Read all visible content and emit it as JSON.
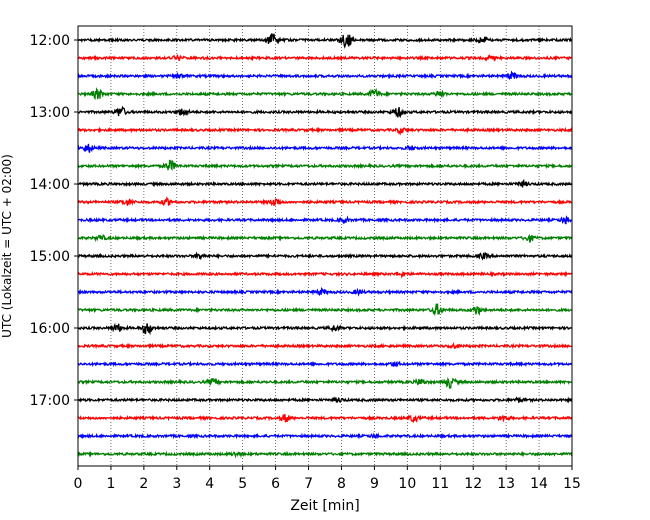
{
  "chart_data": {
    "type": "line",
    "chart_kind": "helicorder",
    "xlabel": "Zeit  [min]",
    "ylabel": "UTC (Lokalzeit = UTC + 02:00)",
    "xlim": [
      0,
      15
    ],
    "x_ticks": [
      0,
      1,
      2,
      3,
      4,
      5,
      6,
      7,
      8,
      9,
      10,
      11,
      12,
      13,
      14,
      15
    ],
    "x_tick_labels": [
      "0",
      "1",
      "2",
      "3",
      "4",
      "5",
      "6",
      "7",
      "8",
      "9",
      "10",
      "11",
      "12",
      "13",
      "14",
      "15"
    ],
    "y_tick_labels": [
      "12:00",
      "13:00",
      "14:00",
      "15:00",
      "16:00",
      "17:00"
    ],
    "grid": {
      "vertical_dotted": true,
      "horizontal": false
    },
    "trace_colors": [
      "#000000",
      "#ff0000",
      "#0000ff",
      "#007f00"
    ],
    "traces": [
      {
        "start": "12:00",
        "color": "#000000",
        "events": [
          [
            5.9,
            1.0
          ],
          [
            8.1,
            0.8
          ],
          [
            8.2,
            0.6
          ],
          [
            12.3,
            0.5
          ]
        ]
      },
      {
        "start": "12:15",
        "color": "#ff0000",
        "events": [
          [
            3.0,
            0.4
          ],
          [
            12.5,
            0.3
          ]
        ]
      },
      {
        "start": "12:30",
        "color": "#0000ff",
        "events": [
          [
            3.1,
            0.3
          ],
          [
            13.2,
            0.5
          ]
        ]
      },
      {
        "start": "12:45",
        "color": "#007f00",
        "events": [
          [
            0.6,
            0.8
          ],
          [
            9.0,
            0.7
          ],
          [
            11.0,
            0.5
          ]
        ]
      },
      {
        "start": "13:00",
        "color": "#000000",
        "events": [
          [
            1.3,
            0.8
          ],
          [
            3.2,
            0.6
          ],
          [
            9.7,
            0.8
          ]
        ]
      },
      {
        "start": "13:15",
        "color": "#ff0000",
        "events": [
          [
            9.8,
            0.4
          ]
        ]
      },
      {
        "start": "13:30",
        "color": "#0000ff",
        "events": [
          [
            0.3,
            0.7
          ],
          [
            10.1,
            0.3
          ]
        ]
      },
      {
        "start": "13:45",
        "color": "#007f00",
        "events": [
          [
            2.8,
            0.9
          ]
        ]
      },
      {
        "start": "14:00",
        "color": "#000000",
        "events": [
          [
            13.5,
            0.4
          ]
        ]
      },
      {
        "start": "14:15",
        "color": "#ff0000",
        "events": [
          [
            1.5,
            0.5
          ],
          [
            2.7,
            0.5
          ],
          [
            6.0,
            0.7
          ]
        ]
      },
      {
        "start": "14:30",
        "color": "#0000ff",
        "events": [
          [
            8.1,
            0.3
          ],
          [
            14.8,
            0.5
          ]
        ]
      },
      {
        "start": "14:45",
        "color": "#007f00",
        "events": [
          [
            0.7,
            0.4
          ],
          [
            13.7,
            0.5
          ]
        ]
      },
      {
        "start": "15:00",
        "color": "#000000",
        "events": [
          [
            3.7,
            0.4
          ],
          [
            12.3,
            0.4
          ]
        ]
      },
      {
        "start": "15:15",
        "color": "#ff0000",
        "events": [
          [
            9.8,
            0.3
          ]
        ]
      },
      {
        "start": "15:30",
        "color": "#0000ff",
        "events": [
          [
            7.4,
            0.4
          ],
          [
            8.5,
            0.3
          ]
        ]
      },
      {
        "start": "15:45",
        "color": "#007f00",
        "events": [
          [
            10.9,
            0.9
          ],
          [
            12.1,
            0.7
          ]
        ]
      },
      {
        "start": "16:00",
        "color": "#000000",
        "events": [
          [
            1.2,
            0.6
          ],
          [
            2.1,
            1.0
          ],
          [
            7.8,
            0.4
          ]
        ]
      },
      {
        "start": "16:15",
        "color": "#ff0000",
        "events": [
          [
            11.4,
            0.3
          ]
        ]
      },
      {
        "start": "16:30",
        "color": "#0000ff",
        "events": [
          [
            9.6,
            0.3
          ]
        ]
      },
      {
        "start": "16:45",
        "color": "#007f00",
        "events": [
          [
            4.1,
            0.5
          ],
          [
            10.4,
            0.5
          ],
          [
            11.3,
            0.9
          ]
        ]
      },
      {
        "start": "17:00",
        "color": "#000000",
        "events": [
          [
            7.9,
            0.3
          ],
          [
            13.4,
            0.3
          ]
        ]
      },
      {
        "start": "17:15",
        "color": "#ff0000",
        "events": [
          [
            6.3,
            0.6
          ],
          [
            10.2,
            0.5
          ],
          [
            12.9,
            0.4
          ]
        ]
      },
      {
        "start": "17:30",
        "color": "#0000ff",
        "events": [
          [
            9.0,
            0.2
          ]
        ]
      },
      {
        "start": "17:45",
        "color": "#007f00",
        "events": [
          [
            4.8,
            0.3
          ]
        ]
      }
    ]
  }
}
